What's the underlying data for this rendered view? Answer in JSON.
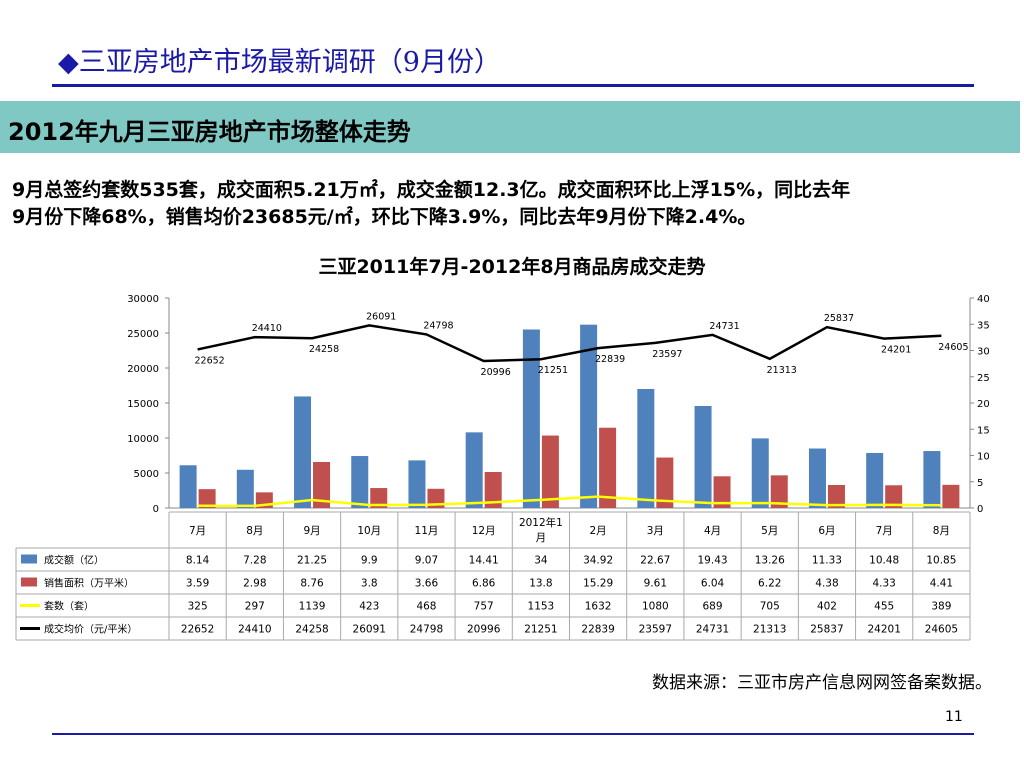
{
  "slide": {
    "title": "◆三亚房地产市场最新调研（9月份）",
    "banner": "2012年九月三亚房地产市场整体走势",
    "summary_line1": "9月总签约套数535套，成交面积5.21万㎡，成交金额12.3亿。成交面积环比上浮15%，同比去年",
    "summary_line2": "9月份下降68%，销售均价23685元/㎡，环比下降3.9%，同比去年9月份下降2.4%。",
    "source": "数据来源：三亚市房产信息网网签备案数据。",
    "page_number": "11"
  },
  "chart_data": {
    "type": "bar",
    "title": "三亚2011年7月-2012年8月商品房成交走势",
    "categories": [
      "7月",
      "8月",
      "9月",
      "10月",
      "11月",
      "12月",
      "2012年1月",
      "2月",
      "3月",
      "4月",
      "5月",
      "6月",
      "7月",
      "8月"
    ],
    "y_left": {
      "min": 0,
      "max": 30000,
      "ticks": [
        0,
        5000,
        10000,
        15000,
        20000,
        25000,
        30000
      ]
    },
    "y_right": {
      "min": 0,
      "max": 40,
      "ticks": [
        0,
        5,
        10,
        15,
        20,
        25,
        30,
        35,
        40
      ]
    },
    "series": [
      {
        "name": "成交额（亿）",
        "kind": "bar",
        "axis": "right",
        "color": "#4f81bd",
        "values": [
          8.14,
          7.28,
          21.25,
          9.9,
          9.07,
          14.41,
          34,
          34.92,
          22.67,
          19.43,
          13.26,
          11.33,
          10.48,
          10.85
        ]
      },
      {
        "name": "销售面积（万平米）",
        "kind": "bar",
        "axis": "right",
        "color": "#c0504d",
        "values": [
          3.59,
          2.98,
          8.76,
          3.8,
          3.66,
          6.86,
          13.8,
          15.29,
          9.61,
          6.04,
          6.22,
          4.38,
          4.33,
          4.41
        ]
      },
      {
        "name": "套数（套）",
        "kind": "line",
        "axis": "left",
        "color": "#ffff00",
        "values": [
          325,
          297,
          1139,
          423,
          468,
          757,
          1153,
          1632,
          1080,
          689,
          705,
          402,
          455,
          389
        ]
      },
      {
        "name": "成交均价（元/平米）",
        "kind": "line",
        "axis": "left",
        "color": "#000000",
        "values": [
          22652,
          24410,
          24258,
          26091,
          24798,
          20996,
          21251,
          22839,
          23597,
          24731,
          21313,
          25837,
          24201,
          24605
        ]
      }
    ],
    "legend": "data-table",
    "grid": false
  }
}
